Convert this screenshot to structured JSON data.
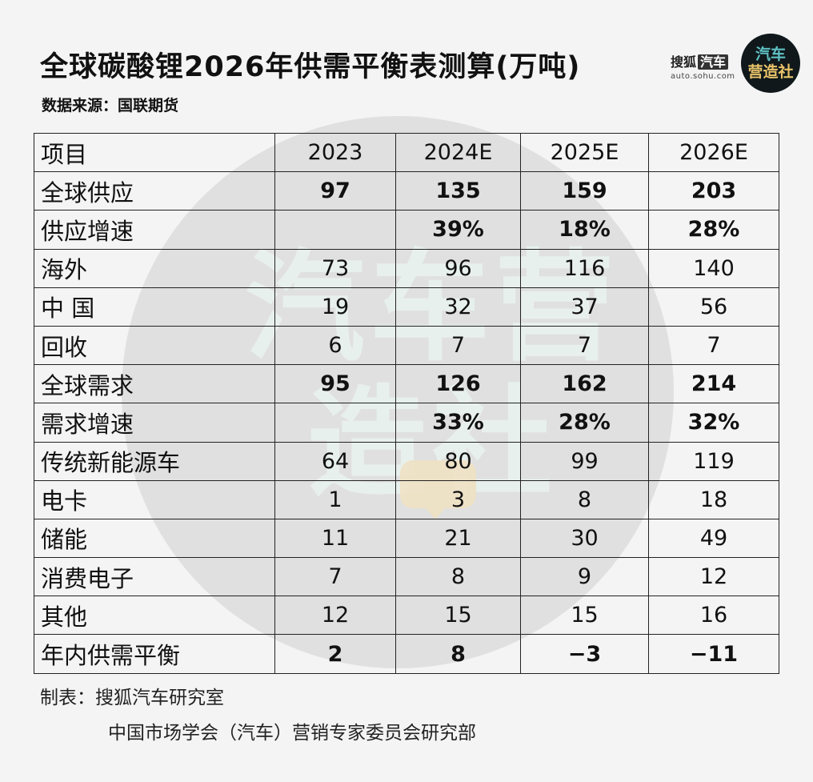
{
  "header": {
    "title": "全球碳酸锂2026年供需平衡表测算(万吨)",
    "source": "数据来源：国联期货"
  },
  "logos": {
    "sohu_brand": "搜狐",
    "sohu_badge": "汽车",
    "sohu_url": "auto.sohu.com",
    "circle_line1": "汽车",
    "circle_line2": "营造社"
  },
  "watermark": {
    "text": "汽车营造社"
  },
  "table": {
    "header": [
      "项目",
      "2023",
      "2024E",
      "2025E",
      "2026E"
    ],
    "rows": [
      {
        "label": "全球供应",
        "values": [
          "97",
          "135",
          "159",
          "203"
        ],
        "bold": true
      },
      {
        "label": "供应增速",
        "values": [
          "",
          "39%",
          "18%",
          "28%"
        ],
        "bold": true
      },
      {
        "label": "海外",
        "values": [
          "73",
          "96",
          "116",
          "140"
        ],
        "bold": false
      },
      {
        "label": "中 国",
        "values": [
          "19",
          "32",
          "37",
          "56"
        ],
        "bold": false
      },
      {
        "label": "回收",
        "values": [
          "6",
          "7",
          "7",
          "7"
        ],
        "bold": false
      },
      {
        "label": "全球需求",
        "values": [
          "95",
          "126",
          "162",
          "214"
        ],
        "bold": true
      },
      {
        "label": "需求增速",
        "values": [
          "",
          "33%",
          "28%",
          "32%"
        ],
        "bold": true
      },
      {
        "label": "传统新能源车",
        "values": [
          "64",
          "80",
          "99",
          "119"
        ],
        "bold": false
      },
      {
        "label": "电卡",
        "values": [
          "1",
          "3",
          "8",
          "18"
        ],
        "bold": false
      },
      {
        "label": "储能",
        "values": [
          "11",
          "21",
          "30",
          "49"
        ],
        "bold": false
      },
      {
        "label": "消费电子",
        "values": [
          "7",
          "8",
          "9",
          "12"
        ],
        "bold": false
      },
      {
        "label": "其他",
        "values": [
          "12",
          "15",
          "15",
          "16"
        ],
        "bold": false
      },
      {
        "label": "年内供需平衡",
        "values": [
          "2",
          "8",
          "−3",
          "−11"
        ],
        "bold": true
      }
    ]
  },
  "footer": {
    "line1": "制表：搜狐汽车研究室",
    "line2": "中国市场学会（汽车）营销专家委员会研究部"
  }
}
